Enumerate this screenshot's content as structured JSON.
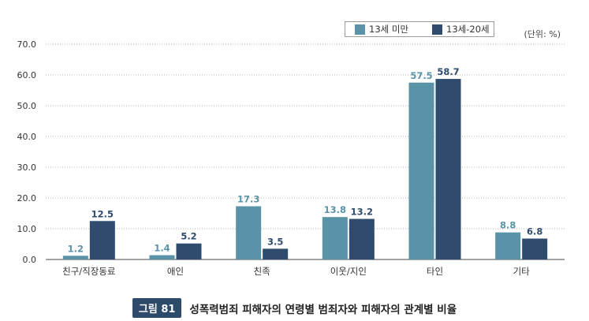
{
  "chart_data": {
    "type": "bar",
    "categories": [
      "친구/직장동료",
      "애인",
      "친족",
      "이웃/지인",
      "타인",
      "기타"
    ],
    "series": [
      {
        "name": "13세 미만",
        "color": "#5a93a8",
        "values": [
          1.2,
          1.4,
          17.3,
          13.8,
          57.5,
          8.8
        ]
      },
      {
        "name": "13세-20세",
        "color": "#2f4b6e",
        "values": [
          12.5,
          5.2,
          3.5,
          13.2,
          58.7,
          6.8
        ]
      }
    ],
    "ylim": [
      0,
      70
    ],
    "yticks": [
      "0.0",
      "10.0",
      "20.0",
      "30.0",
      "40.0",
      "50.0",
      "60.0",
      "70.0"
    ],
    "unit": "(단위: %)",
    "grid": true,
    "legend": "top-right"
  },
  "caption": {
    "badge": "그림 81",
    "title": "성폭력범죄 피해자의 연령별 범죄자와 피해자의 관계별 비율"
  }
}
